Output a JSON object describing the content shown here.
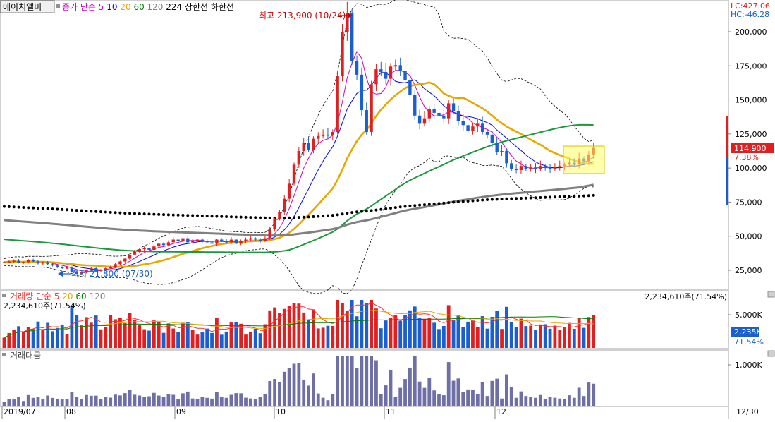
{
  "stock_name": "에이치엘비",
  "price_legend": {
    "label": "종가 단순",
    "periods": [
      "5",
      "10",
      "20",
      "60",
      "120",
      "224"
    ],
    "extra": [
      "상한선",
      "하한선"
    ],
    "colors": [
      "#cc00cc",
      "#0000ff",
      "#e8a800",
      "#008000",
      "#808080",
      "#000000",
      "#000000",
      "#000000"
    ]
  },
  "lc_label": "LC:427.06",
  "hc_label": "HC:-46.28",
  "high_annotation": "최고 213,900 (10/24)",
  "low_annotation": "최저 21,800 (07/30)",
  "current_price_label": "114,900",
  "change_label": "7.38%",
  "price_axis_ticks": [
    "200,000",
    "175,000",
    "150,000",
    "125,000",
    "100,000",
    "75,000",
    "50,000",
    "25,000"
  ],
  "volume_legend": {
    "label": "거래량",
    "sub": "단순",
    "periods": [
      "5",
      "20",
      "60",
      "120"
    ],
    "colors": [
      "#ff3030",
      "#e8a800",
      "#008000",
      "#808080"
    ]
  },
  "volume_left_value": "2,234,610주(71.54%)",
  "volume_right_value": "2,234,610주(71.54%)",
  "volume_axis_tick": "5,000K",
  "volume_current_label": "2,235K",
  "volume_pct_label": "71.54%",
  "amount_legend": "거래대금",
  "amount_axis_tick": "1,000K",
  "date_labels": [
    "2019/07",
    "08",
    "09",
    "10",
    "11",
    "12"
  ],
  "end_date_label": "12/30",
  "colors": {
    "up": "#e02020",
    "down": "#1a5fd0",
    "ma5": "#cc00cc",
    "ma10": "#0000ff",
    "ma20": "#e8a800",
    "ma60": "#1a9a3a",
    "ma120": "#808080",
    "ma224": "#000000",
    "amount_bar": "#6f6fa8"
  },
  "chart_data": {
    "type": "candlestick",
    "y_range": [
      10000,
      225000
    ],
    "start_index_close": [
      31000,
      31500,
      32000,
      30500,
      31000,
      32500,
      31500,
      30000,
      31000,
      29500,
      28500,
      27500,
      26500,
      27000,
      24000,
      22500,
      23500,
      25000,
      26500,
      24500,
      25500,
      26500,
      27500,
      29500,
      31500,
      33500,
      36500,
      38500,
      40500,
      41500,
      40000,
      42500,
      44500,
      43500,
      45500,
      47500,
      46500,
      48500,
      45500,
      46500,
      47500,
      46500,
      45500,
      44500,
      47500,
      46500,
      45500,
      47500,
      44500,
      46500,
      47500,
      48500,
      47500,
      46500,
      48500,
      55000,
      62500,
      67500,
      77500,
      88500,
      102500,
      112500,
      118500,
      113500,
      121500,
      123500,
      124500,
      124000,
      126500,
      167500,
      199500,
      213500,
      178500,
      168500,
      142500,
      126500,
      161500,
      172500,
      170500,
      165500,
      174500,
      175500,
      171500,
      164500,
      153500,
      138500,
      132500,
      136500,
      143500,
      140500,
      138500,
      136500,
      147500,
      141500,
      134500,
      131500,
      127500,
      130500,
      132500,
      126500,
      124500,
      118500,
      111500,
      112500,
      103500,
      99500,
      98500,
      101500,
      99500,
      100500,
      99500,
      101500,
      100500,
      99500,
      100500,
      101500,
      102500,
      104000,
      103000,
      107000,
      105000,
      110000,
      114900
    ]
  }
}
